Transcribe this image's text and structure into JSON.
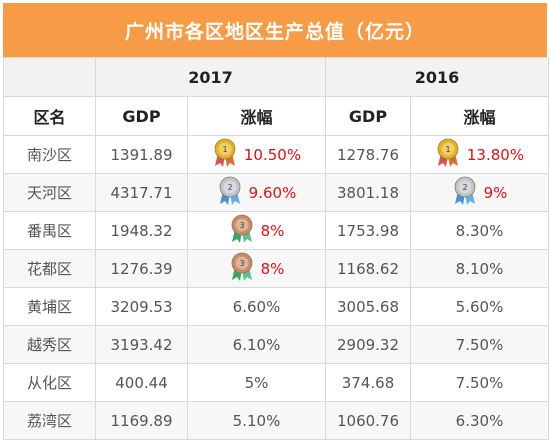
{
  "title": "广州市各区地区生产总值（亿元）",
  "years": [
    "2017",
    "2016"
  ],
  "headers": {
    "district": "区名",
    "gdp": "GDP",
    "growth": "涨幅"
  },
  "colors": {
    "header_bg": "#f79b46",
    "medal_gold": "#e8b21a",
    "medal_silver": "#c0c4cc",
    "medal_bronze": "#c98a66",
    "highlight_text": "#e01010"
  },
  "rows": [
    {
      "name": "南沙区",
      "gdp2017": "1391.89",
      "growth2017": "10.50%",
      "medal2017": "gold",
      "gdp2016": "1278.76",
      "growth2016": "13.80%",
      "medal2016": "gold",
      "num2017": "1",
      "num2016": "1"
    },
    {
      "name": "天河区",
      "gdp2017": "4317.71",
      "growth2017": "9.60%",
      "medal2017": "silver",
      "gdp2016": "3801.18",
      "growth2016": "9%",
      "medal2016": "silver",
      "num2017": "2",
      "num2016": "2"
    },
    {
      "name": "番禺区",
      "gdp2017": "1948.32",
      "growth2017": "8%",
      "medal2017": "bronze",
      "gdp2016": "1753.98",
      "growth2016": "8.30%",
      "medal2016": "",
      "num2017": "3",
      "num2016": ""
    },
    {
      "name": "花都区",
      "gdp2017": "1276.39",
      "growth2017": "8%",
      "medal2017": "bronze",
      "gdp2016": "1168.62",
      "growth2016": "8.10%",
      "medal2016": "",
      "num2017": "3",
      "num2016": ""
    },
    {
      "name": "黄埔区",
      "gdp2017": "3209.53",
      "growth2017": "6.60%",
      "medal2017": "",
      "gdp2016": "3005.68",
      "growth2016": "5.60%",
      "medal2016": "",
      "num2017": "",
      "num2016": ""
    },
    {
      "name": "越秀区",
      "gdp2017": "3193.42",
      "growth2017": "6.10%",
      "medal2017": "",
      "gdp2016": "2909.32",
      "growth2016": "7.50%",
      "medal2016": "",
      "num2017": "",
      "num2016": ""
    },
    {
      "name": "从化区",
      "gdp2017": "400.44",
      "growth2017": "5%",
      "medal2017": "",
      "gdp2016": "374.68",
      "growth2016": "7.50%",
      "medal2016": "",
      "num2017": "",
      "num2016": ""
    },
    {
      "name": "荔湾区",
      "gdp2017": "1169.89",
      "growth2017": "5.10%",
      "medal2017": "",
      "gdp2016": "1060.76",
      "growth2016": "6.30%",
      "medal2016": "",
      "num2017": "",
      "num2016": ""
    }
  ]
}
